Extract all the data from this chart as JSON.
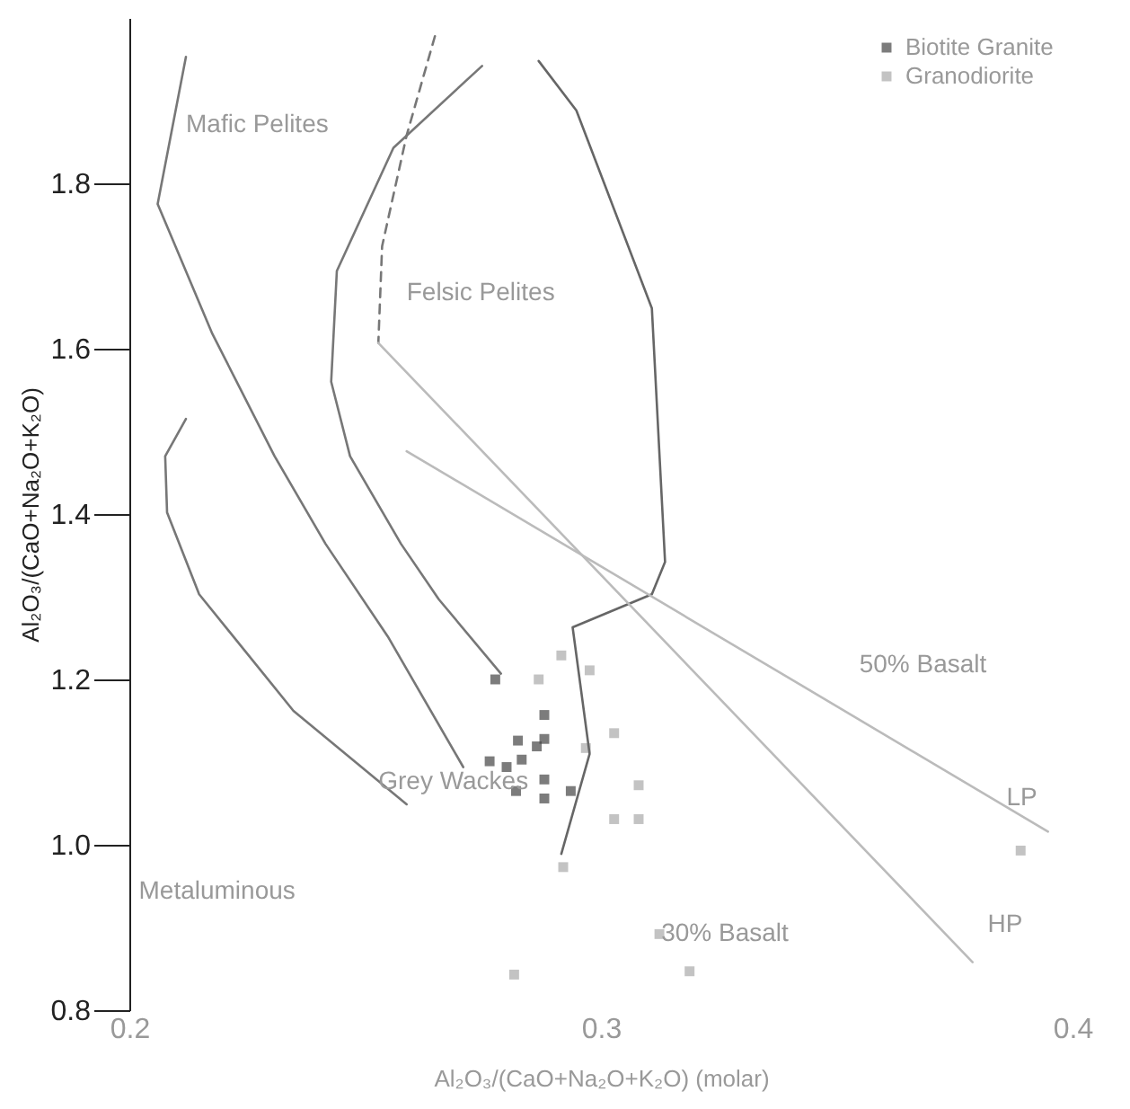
{
  "chart_data": {
    "type": "scatter",
    "xlabel": "Al₂O₃/(CaO+Na₂O+K₂O) (molar)",
    "ylabel": "Al₂O₃/(CaO+Na₂O+K₂O)",
    "xlim": [
      0.2,
      0.4
    ],
    "ylim": [
      0.8,
      2.0
    ],
    "xticks": [
      0.2,
      0.3,
      0.4
    ],
    "yticks": [
      0.8,
      {
        "value": 1.0,
        "label": "1.0"
      },
      1.2,
      1.4,
      1.6,
      1.8
    ],
    "grid": false,
    "legend": "top right",
    "series": [
      {
        "name": "Biotite Granite",
        "color": "#444444",
        "marker": "square",
        "x": [
          0.2776,
          0.288,
          0.2824,
          0.2864,
          0.288,
          0.2764,
          0.28,
          0.2832,
          0.282,
          0.288,
          0.288,
          0.2936
        ],
        "values": [
          1.2,
          1.157,
          1.126,
          1.119,
          1.128,
          1.101,
          1.094,
          1.103,
          1.065,
          1.079,
          1.056,
          1.065
        ]
      },
      {
        "name": "Granodiorite",
        "color": "#aaaaaa",
        "marker": "square",
        "x": [
          0.2916,
          0.2868,
          0.2976,
          0.3028,
          0.2968,
          0.308,
          0.3028,
          0.308,
          0.292,
          0.2816,
          0.3124,
          0.3188,
          0.389
        ],
        "values": [
          1.229,
          1.2,
          1.211,
          1.135,
          1.117,
          1.072,
          1.031,
          1.031,
          0.973,
          0.843,
          0.892,
          0.847,
          0.993
        ]
      },
      {
        "type": "line",
        "color": "#777777",
        "x": [
          0.212,
          0.206,
          0.2176,
          0.2308,
          0.2416,
          0.2548,
          0.2708
        ],
        "values": [
          1.953,
          1.775,
          1.618,
          1.47,
          1.364,
          1.252,
          1.094
        ]
      },
      {
        "type": "line",
        "color": "#777777",
        "x": [
          0.212,
          0.2076,
          0.208,
          0.2148,
          0.2348,
          0.2588
        ],
        "values": [
          1.515,
          1.47,
          1.402,
          1.303,
          1.162,
          1.049
        ]
      },
      {
        "type": "line",
        "color": "#777777",
        "x": [
          0.2748,
          0.256,
          0.244,
          0.2428,
          0.2468,
          0.2576,
          0.2656,
          0.2788
        ],
        "values": [
          1.942,
          1.843,
          1.694,
          1.56,
          1.47,
          1.364,
          1.297,
          1.207
        ]
      },
      {
        "type": "line",
        "color": "#666666",
        "x": [
          0.2868,
          0.2948,
          0.3108,
          0.3136,
          0.3108,
          0.294,
          0.2976,
          0.2916
        ],
        "values": [
          1.948,
          1.888,
          1.649,
          1.342,
          1.303,
          1.263,
          1.11,
          0.989
        ]
      },
      {
        "type": "line",
        "color": "#777777",
        "line_style": "dashed",
        "x": [
          0.2648,
          0.2588,
          0.2536,
          0.2528
        ],
        "values": [
          1.978,
          1.858,
          1.724,
          1.607
        ]
      },
      {
        "type": "line",
        "color": "#bbbbbb",
        "x": [
          0.2528,
          0.3788
        ],
        "values": [
          1.607,
          0.858
        ]
      },
      {
        "type": "line",
        "color": "#bbbbbb",
        "x": [
          0.2588,
          0.3948
        ],
        "values": [
          1.476,
          1.016
        ]
      }
    ],
    "annotations": [
      "Mafic Pelites",
      "Felsic Pelites",
      {
        "text": "Grey Wackes",
        "x": 0.2528,
        "y": 1.076
      },
      "Metaluminous",
      {
        "text": "30% Basalt",
        "x": 0.3128,
        "y": 0.892
      },
      "50% Basalt",
      {
        "text": "LP",
        "x": 0.386,
        "y": 1.056
      },
      "HP"
    ]
  }
}
